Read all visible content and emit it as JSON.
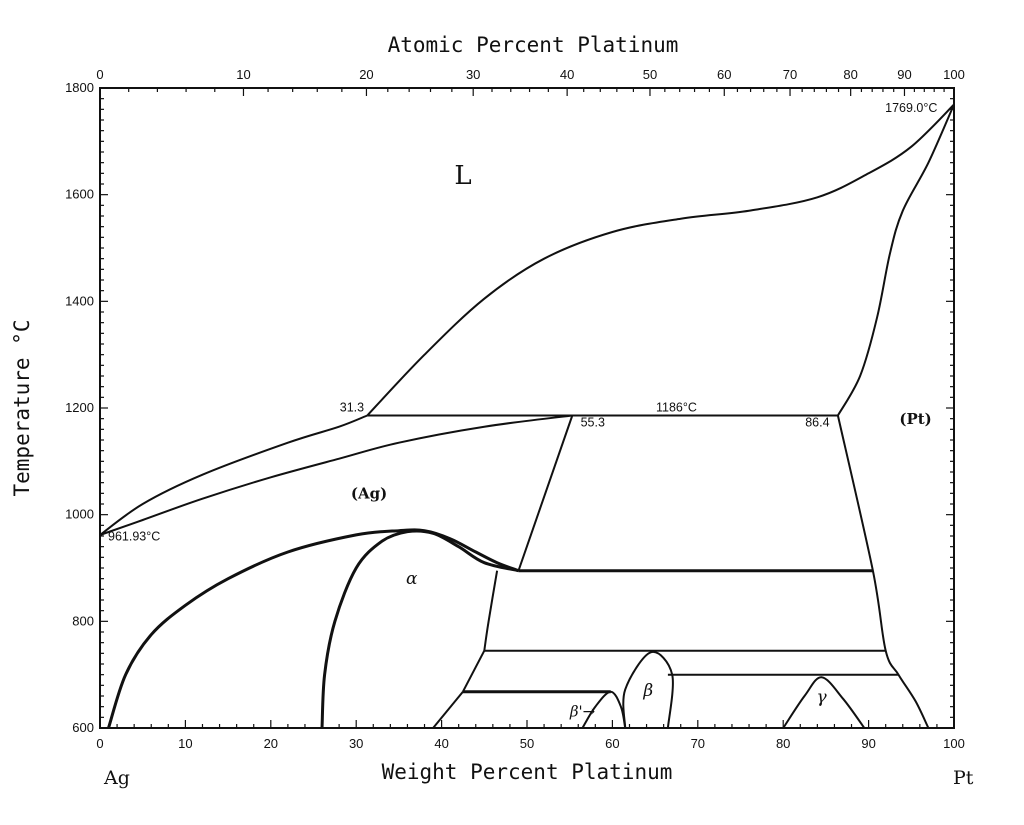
{
  "chart_data": {
    "type": "phase-diagram",
    "xlabel": "Weight Percent Platinum",
    "x2label": "Atomic Percent Platinum",
    "ylabel": "Temperature °C",
    "xlim": [
      0,
      100
    ],
    "ylim": [
      600,
      1800
    ],
    "x_ticks": [
      0,
      10,
      20,
      30,
      40,
      50,
      60,
      70,
      80,
      90,
      100
    ],
    "x_tick_labels": [
      "0",
      "10",
      "20",
      "30",
      "40",
      "50",
      "60",
      "70",
      "80",
      "90",
      "100"
    ],
    "atomic_ticks": [
      {
        "at": 0,
        "wt": 0
      },
      {
        "at": 10,
        "wt": 16.8
      },
      {
        "at": 20,
        "wt": 31.2
      },
      {
        "at": 30,
        "wt": 43.7
      },
      {
        "at": 40,
        "wt": 54.7
      },
      {
        "at": 50,
        "wt": 64.4
      },
      {
        "at": 60,
        "wt": 73.1
      },
      {
        "at": 70,
        "wt": 80.8
      },
      {
        "at": 80,
        "wt": 87.9
      },
      {
        "at": 90,
        "wt": 94.2
      },
      {
        "at": 100,
        "wt": 100
      }
    ],
    "atomic_tick_labels": [
      "0",
      "10",
      "20",
      "30",
      "40",
      "50",
      "60",
      "70",
      "80",
      "90",
      "100"
    ],
    "y_ticks": [
      600,
      800,
      1000,
      1200,
      1400,
      1600,
      1800
    ],
    "y_tick_labels": [
      "600",
      "800",
      "1000",
      "1200",
      "1400",
      "1600",
      "1800"
    ],
    "left_element": "Ag",
    "right_element": "Pt",
    "phase_labels": [
      {
        "text": "L",
        "x": 42.5,
        "y": 1620,
        "size": 26
      },
      {
        "text": "(Ag)",
        "x": 31.5,
        "y": 1030,
        "size": 15
      },
      {
        "text": "(Pt)",
        "x": 95.5,
        "y": 1170,
        "size": 15
      },
      {
        "text": "α",
        "x": 36.5,
        "y": 870,
        "size": 17
      },
      {
        "text": "β",
        "x": 64.2,
        "y": 660,
        "size": 17
      },
      {
        "text": "γ",
        "x": 84.5,
        "y": 648,
        "size": 17
      },
      {
        "text": "β'→",
        "x": 56.5,
        "y": 622,
        "size": 15
      }
    ],
    "annotations": [
      {
        "text": "1769.0°C",
        "x": 95,
        "y": 1755
      },
      {
        "text": "961.93°C",
        "x": 4,
        "y": 952
      },
      {
        "text": "31.3",
        "x": 29.5,
        "y": 1193
      },
      {
        "text": "55.3",
        "x": 57.7,
        "y": 1165
      },
      {
        "text": "1186°C",
        "x": 67.5,
        "y": 1193
      },
      {
        "text": "86.4",
        "x": 84,
        "y": 1165
      }
    ],
    "series": [
      {
        "style": "thin",
        "points": [
          [
            0,
            961.93
          ],
          [
            5,
            1020
          ],
          [
            12,
            1075
          ],
          [
            22,
            1135
          ],
          [
            28,
            1165
          ],
          [
            31.3,
            1186
          ]
        ]
      },
      {
        "style": "thin",
        "points": [
          [
            31.3,
            1186
          ],
          [
            38,
            1300
          ],
          [
            45,
            1405
          ],
          [
            52,
            1480
          ],
          [
            60,
            1530
          ],
          [
            68,
            1555
          ],
          [
            76,
            1570
          ],
          [
            84,
            1595
          ],
          [
            90,
            1640
          ],
          [
            95,
            1690
          ],
          [
            100,
            1769
          ]
        ]
      },
      {
        "style": "thin",
        "points": [
          [
            0,
            961.93
          ],
          [
            5,
            990
          ],
          [
            12,
            1030
          ],
          [
            20,
            1070
          ],
          [
            28,
            1105
          ],
          [
            35,
            1135
          ],
          [
            45,
            1165
          ],
          [
            55.3,
            1186
          ]
        ]
      },
      {
        "style": "thin",
        "points": [
          [
            31.3,
            1186
          ],
          [
            55.3,
            1186
          ],
          [
            86.4,
            1186
          ]
        ]
      },
      {
        "style": "thin",
        "points": [
          [
            86.4,
            1186
          ],
          [
            89,
            1260
          ],
          [
            91,
            1370
          ],
          [
            92.5,
            1490
          ],
          [
            94,
            1570
          ],
          [
            97,
            1660
          ],
          [
            100,
            1769
          ]
        ]
      },
      {
        "style": "thin",
        "points": [
          [
            55.3,
            1186
          ],
          [
            49,
            895
          ]
        ]
      },
      {
        "style": "thin",
        "points": [
          [
            86.4,
            1186
          ],
          [
            90.5,
            895
          ],
          [
            92,
            745
          ],
          [
            93.5,
            700
          ],
          [
            95.5,
            650
          ],
          [
            97,
            600
          ]
        ]
      },
      {
        "style": "thick",
        "points": [
          [
            1,
            600
          ],
          [
            3,
            700
          ],
          [
            6,
            775
          ],
          [
            10,
            830
          ],
          [
            15,
            880
          ],
          [
            22,
            930
          ],
          [
            30,
            962
          ],
          [
            35,
            970
          ],
          [
            38,
            970
          ],
          [
            41,
            955
          ],
          [
            44,
            930
          ],
          [
            46.5,
            910
          ],
          [
            49,
            895
          ]
        ]
      },
      {
        "style": "thick",
        "points": [
          [
            26,
            600
          ],
          [
            26.3,
            700
          ],
          [
            27.5,
            800
          ],
          [
            30,
            900
          ],
          [
            33,
            950
          ],
          [
            36,
            968
          ],
          [
            39,
            965
          ],
          [
            42,
            940
          ],
          [
            45,
            910
          ],
          [
            49,
            895
          ]
        ]
      },
      {
        "style": "thick",
        "points": [
          [
            49,
            895
          ],
          [
            90.5,
            895
          ]
        ]
      },
      {
        "style": "thin",
        "points": [
          [
            46.5,
            895
          ],
          [
            45.5,
            800
          ],
          [
            45,
            745
          ]
        ]
      },
      {
        "style": "thin",
        "points": [
          [
            45,
            745
          ],
          [
            92,
            745
          ]
        ]
      },
      {
        "style": "thin",
        "points": [
          [
            45,
            745
          ],
          [
            42.5,
            668
          ]
        ]
      },
      {
        "style": "thick",
        "points": [
          [
            42.5,
            668
          ],
          [
            59.8,
            668
          ]
        ]
      },
      {
        "style": "thin",
        "points": [
          [
            42.5,
            668
          ],
          [
            39,
            600
          ]
        ]
      },
      {
        "style": "thin",
        "points": [
          [
            56.5,
            600
          ],
          [
            58,
            640
          ],
          [
            59.8,
            668
          ],
          [
            61,
            640
          ],
          [
            61.5,
            600
          ]
        ]
      },
      {
        "style": "thin",
        "points": [
          [
            61.5,
            600
          ],
          [
            61.5,
            672
          ],
          [
            64.5,
            742
          ],
          [
            67,
            700
          ],
          [
            66.5,
            600
          ]
        ]
      },
      {
        "style": "thin",
        "points": [
          [
            66.5,
            700
          ],
          [
            93.5,
            700
          ]
        ]
      },
      {
        "style": "thin",
        "points": [
          [
            80,
            600
          ],
          [
            82.5,
            660
          ],
          [
            84.5,
            695
          ],
          [
            87,
            655
          ],
          [
            89.5,
            600
          ]
        ]
      }
    ]
  }
}
